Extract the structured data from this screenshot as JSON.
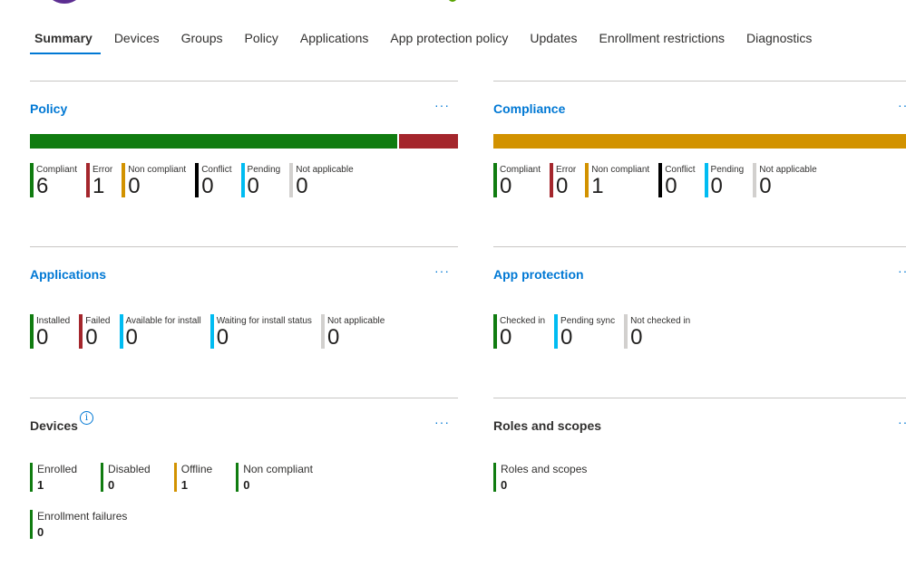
{
  "tabs": [
    {
      "label": "Summary",
      "active": true
    },
    {
      "label": "Devices"
    },
    {
      "label": "Groups"
    },
    {
      "label": "Policy"
    },
    {
      "label": "Applications"
    },
    {
      "label": "App protection policy"
    },
    {
      "label": "Updates"
    },
    {
      "label": "Enrollment restrictions"
    },
    {
      "label": "Diagnostics"
    }
  ],
  "colors": {
    "green": "#107c10",
    "red": "#a4262c",
    "orange": "#d29200",
    "black": "#000000",
    "blue": "#00bcf2",
    "gray": "#d2d0ce",
    "accent": "#0078d4",
    "avatar": "#5c2d91"
  },
  "more_label": "···",
  "policy": {
    "title": "Policy",
    "bar": [
      {
        "status": "Compliant",
        "value": 6,
        "color": "#107c10"
      },
      {
        "status": "Error",
        "value": 1,
        "color": "#a4262c"
      }
    ],
    "stats": [
      {
        "label": "Compliant",
        "value": "6",
        "color": "#107c10"
      },
      {
        "label": "Error",
        "value": "1",
        "color": "#a4262c"
      },
      {
        "label": "Non compliant",
        "value": "0",
        "color": "#d29200"
      },
      {
        "label": "Conflict",
        "value": "0",
        "color": "#000000"
      },
      {
        "label": "Pending",
        "value": "0",
        "color": "#00bcf2"
      },
      {
        "label": "Not applicable",
        "value": "0",
        "color": "#d2d0ce"
      }
    ]
  },
  "compliance": {
    "title": "Compliance",
    "bar": [
      {
        "status": "Non compliant",
        "value": 1,
        "color": "#d29200"
      }
    ],
    "stats": [
      {
        "label": "Compliant",
        "value": "0",
        "color": "#107c10"
      },
      {
        "label": "Error",
        "value": "0",
        "color": "#a4262c"
      },
      {
        "label": "Non compliant",
        "value": "1",
        "color": "#d29200"
      },
      {
        "label": "Conflict",
        "value": "0",
        "color": "#000000"
      },
      {
        "label": "Pending",
        "value": "0",
        "color": "#00bcf2"
      },
      {
        "label": "Not applicable",
        "value": "0",
        "color": "#d2d0ce"
      }
    ]
  },
  "applications": {
    "title": "Applications",
    "stats": [
      {
        "label": "Installed",
        "value": "0",
        "color": "#107c10"
      },
      {
        "label": "Failed",
        "value": "0",
        "color": "#a4262c"
      },
      {
        "label": "Available for install",
        "value": "0",
        "color": "#00bcf2"
      },
      {
        "label": "Waiting for install status",
        "value": "0",
        "color": "#00bcf2"
      },
      {
        "label": "Not applicable",
        "value": "0",
        "color": "#d2d0ce"
      }
    ]
  },
  "app_protection": {
    "title": "App protection",
    "stats": [
      {
        "label": "Checked in",
        "value": "0",
        "color": "#107c10"
      },
      {
        "label": "Pending sync",
        "value": "0",
        "color": "#00bcf2"
      },
      {
        "label": "Not checked in",
        "value": "0",
        "color": "#d2d0ce"
      }
    ]
  },
  "devices": {
    "title": "Devices",
    "info_icon": "info-icon",
    "info_glyph": "i",
    "row1": [
      {
        "label": "Enrolled",
        "value": "1",
        "color": "#107c10"
      },
      {
        "label": "Disabled",
        "value": "0",
        "color": "#107c10"
      },
      {
        "label": "Offline",
        "value": "1",
        "color": "#d29200"
      },
      {
        "label": "Non compliant",
        "value": "0",
        "color": "#107c10"
      }
    ],
    "row2": [
      {
        "label": "Enrollment failures",
        "value": "0",
        "color": "#107c10"
      }
    ]
  },
  "roles": {
    "title": "Roles and scopes",
    "stats": [
      {
        "label": "Roles and scopes",
        "value": "0",
        "color": "#107c10"
      }
    ]
  }
}
